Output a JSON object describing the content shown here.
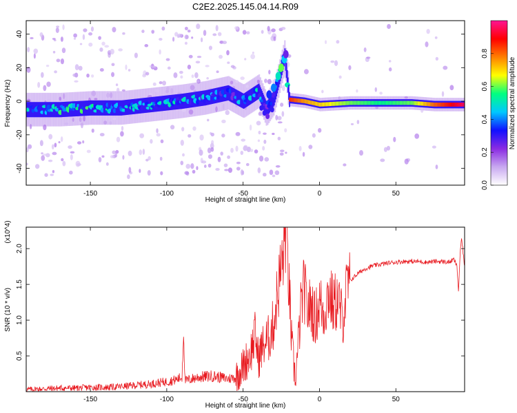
{
  "title": "C2E2.2025.145.04.14.R09",
  "chart_data": [
    {
      "type": "heatmap",
      "xlabel": "Height of straight line (km)",
      "ylabel": "Frequency (Hz)",
      "xlim": [
        -192,
        95
      ],
      "ylim": [
        -50,
        48
      ],
      "x_ticks": [
        -150,
        -100,
        -50,
        0,
        50
      ],
      "y_ticks": [
        -40,
        -20,
        0,
        20,
        40
      ],
      "colorbar": {
        "label": "Normalized spectral amplitude",
        "range": [
          0,
          1
        ],
        "ticks": [
          0.0,
          0.2,
          0.4,
          0.6,
          0.8
        ],
        "colors": [
          "#ffffff",
          "#c8a8f0",
          "#8a2be2",
          "#1010ff",
          "#00c8ff",
          "#00ff80",
          "#ffff00",
          "#ff8000",
          "#ff0000",
          "#ff1493"
        ]
      },
      "ridge": [
        {
          "x": -190,
          "y": -5,
          "a": 0.45
        },
        {
          "x": -170,
          "y": -5,
          "a": 0.5
        },
        {
          "x": -150,
          "y": -4,
          "a": 0.5
        },
        {
          "x": -130,
          "y": -4,
          "a": 0.45
        },
        {
          "x": -110,
          "y": -2,
          "a": 0.45
        },
        {
          "x": -90,
          "y": 0,
          "a": 0.45
        },
        {
          "x": -75,
          "y": 2,
          "a": 0.4
        },
        {
          "x": -60,
          "y": 5,
          "a": 0.35
        },
        {
          "x": -50,
          "y": 0,
          "a": 0.4
        },
        {
          "x": -40,
          "y": 6,
          "a": 0.45
        },
        {
          "x": -35,
          "y": -5,
          "a": 0.3
        },
        {
          "x": -30,
          "y": 2,
          "a": 0.35
        },
        {
          "x": -25,
          "y": 20,
          "a": 0.55
        },
        {
          "x": -23,
          "y": 27,
          "a": 0.35
        },
        {
          "x": -20,
          "y": 1,
          "a": 0.85
        },
        {
          "x": -10,
          "y": 0,
          "a": 0.75
        },
        {
          "x": 0,
          "y": -2,
          "a": 0.7
        },
        {
          "x": 20,
          "y": -1,
          "a": 0.6
        },
        {
          "x": 40,
          "y": -1,
          "a": 0.55
        },
        {
          "x": 60,
          "y": -1,
          "a": 0.6
        },
        {
          "x": 75,
          "y": -2,
          "a": 0.8
        },
        {
          "x": 94,
          "y": -2,
          "a": 0.95
        }
      ]
    },
    {
      "type": "line",
      "xlabel": "Height of straight line (km)",
      "ylabel": "SNR (10 * v/v)",
      "scale_label": "(x10^4)",
      "xlim": [
        -192,
        95
      ],
      "ylim": [
        0,
        2.3
      ],
      "x_ticks": [
        -150,
        -100,
        -50,
        0,
        50
      ],
      "y_ticks": [
        0.5,
        1.0,
        1.5,
        2.0
      ],
      "line_color": "#e8191f",
      "series": [
        {
          "name": "",
          "points": [
            [
              -192,
              0.03
            ],
            [
              -180,
              0.04
            ],
            [
              -170,
              0.05
            ],
            [
              -160,
              0.05
            ],
            [
              -150,
              0.06
            ],
            [
              -140,
              0.06
            ],
            [
              -130,
              0.07
            ],
            [
              -120,
              0.09
            ],
            [
              -110,
              0.11
            ],
            [
              -100,
              0.14
            ],
            [
              -95,
              0.16
            ],
            [
              -90,
              0.2
            ],
            [
              -89,
              0.9
            ],
            [
              -88,
              0.15
            ],
            [
              -80,
              0.2
            ],
            [
              -70,
              0.22
            ],
            [
              -60,
              0.18
            ],
            [
              -55,
              0.2
            ],
            [
              -50,
              0.35
            ],
            [
              -45,
              0.55
            ],
            [
              -42,
              0.8
            ],
            [
              -40,
              0.45
            ],
            [
              -38,
              0.6
            ],
            [
              -35,
              0.7
            ],
            [
              -33,
              0.75
            ],
            [
              -30,
              0.95
            ],
            [
              -28,
              1.3
            ],
            [
              -26,
              1.6
            ],
            [
              -24,
              1.85
            ],
            [
              -22,
              2.3
            ],
            [
              -20,
              1.5
            ],
            [
              -18,
              0.6
            ],
            [
              -16,
              0.2
            ],
            [
              -15,
              0.35
            ],
            [
              -12,
              1.2
            ],
            [
              -10,
              1.45
            ],
            [
              -8,
              1.15
            ],
            [
              -5,
              1.2
            ],
            [
              -3,
              1.0
            ],
            [
              0,
              1.25
            ],
            [
              3,
              1.1
            ],
            [
              6,
              1.4
            ],
            [
              9,
              1.2
            ],
            [
              12,
              1.3
            ],
            [
              15,
              1.0
            ],
            [
              18,
              1.45
            ],
            [
              20,
              1.55
            ],
            [
              25,
              1.65
            ],
            [
              30,
              1.72
            ],
            [
              35,
              1.76
            ],
            [
              40,
              1.78
            ],
            [
              45,
              1.8
            ],
            [
              50,
              1.81
            ],
            [
              55,
              1.82
            ],
            [
              60,
              1.82
            ],
            [
              65,
              1.82
            ],
            [
              70,
              1.81
            ],
            [
              75,
              1.82
            ],
            [
              80,
              1.82
            ],
            [
              85,
              1.81
            ],
            [
              88,
              1.85
            ],
            [
              90,
              1.75
            ],
            [
              91,
              1.4
            ],
            [
              92,
              1.9
            ],
            [
              93,
              2.15
            ],
            [
              95,
              1.75
            ]
          ]
        }
      ]
    }
  ]
}
